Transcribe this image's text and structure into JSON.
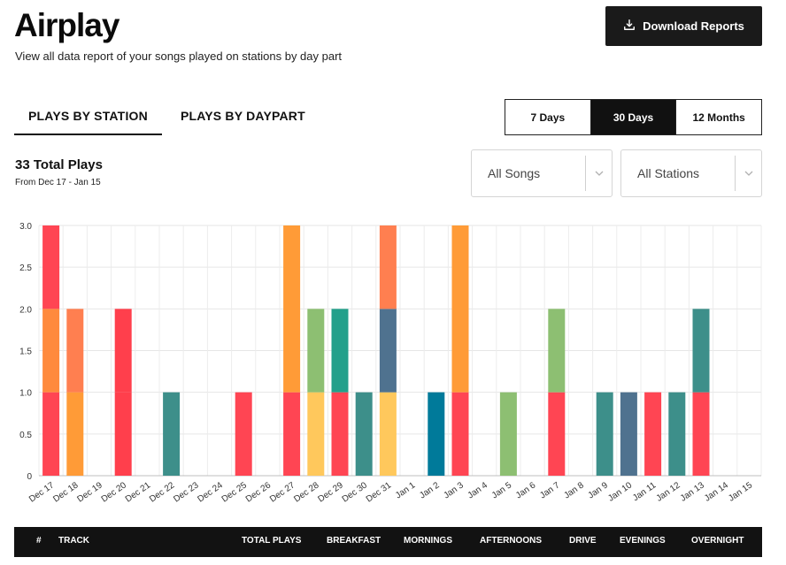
{
  "header": {
    "title": "Airplay",
    "subtitle": "View all data report of your songs played on stations by day part",
    "download_label": "Download Reports"
  },
  "view_tabs": [
    {
      "label": "PLAYS BY STATION",
      "active": true
    },
    {
      "label": "PLAYS BY DAYPART",
      "active": false
    }
  ],
  "range_options": [
    {
      "label": "7 Days",
      "active": false
    },
    {
      "label": "30 Days",
      "active": true
    },
    {
      "label": "12 Months",
      "active": false
    }
  ],
  "summary": {
    "total": "33 Total Plays",
    "range": "From Dec 17 - Jan 15"
  },
  "filters": {
    "songs": "All Songs",
    "stations": "All Stations"
  },
  "chart_data": {
    "type": "bar",
    "stacked": true,
    "ylim": [
      0,
      3
    ],
    "yticks": [
      "0",
      "0.5",
      "1.0",
      "1.5",
      "2.0",
      "2.5",
      "3.0"
    ],
    "grid": true,
    "categories": [
      "Dec 17",
      "Dec 18",
      "Dec 19",
      "Dec 20",
      "Dec 21",
      "Dec 22",
      "Dec 23",
      "Dec 24",
      "Dec 25",
      "Dec 26",
      "Dec 27",
      "Dec 28",
      "Dec 29",
      "Dec 30",
      "Dec 31",
      "Jan 1",
      "Jan 2",
      "Jan 3",
      "Jan 4",
      "Jan 5",
      "Jan 6",
      "Jan 7",
      "Jan 8",
      "Jan 9",
      "Jan 10",
      "Jan 11",
      "Jan 12",
      "Jan 13",
      "Jan 14",
      "Jan 15"
    ],
    "stacks": [
      [
        {
          "value": 1,
          "color": "#ff4553"
        },
        {
          "value": 1,
          "color": "#ff8a3d"
        },
        {
          "value": 1,
          "color": "#ff4553"
        }
      ],
      [
        {
          "value": 1,
          "color": "#ff9b37"
        },
        {
          "value": 1,
          "color": "#ff7f50"
        }
      ],
      [],
      [
        {
          "value": 1,
          "color": "#ff3f4c"
        },
        {
          "value": 1,
          "color": "#ff3f4c"
        }
      ],
      [],
      [
        {
          "value": 1,
          "color": "#3d8f8a"
        }
      ],
      [],
      [],
      [
        {
          "value": 1,
          "color": "#ff4553"
        }
      ],
      [],
      [
        {
          "value": 1,
          "color": "#ff4553"
        },
        {
          "value": 2,
          "color": "#ff9b37"
        }
      ],
      [
        {
          "value": 1,
          "color": "#ffc85c"
        },
        {
          "value": 1,
          "color": "#8dbf72"
        }
      ],
      [
        {
          "value": 1,
          "color": "#ff4553"
        },
        {
          "value": 1,
          "color": "#23a08b"
        }
      ],
      [
        {
          "value": 1,
          "color": "#3d8f8a"
        }
      ],
      [
        {
          "value": 1,
          "color": "#ffc85c"
        },
        {
          "value": 1,
          "color": "#4f728f"
        },
        {
          "value": 1,
          "color": "#ff7f50"
        }
      ],
      [],
      [
        {
          "value": 1,
          "color": "#007a9a"
        }
      ],
      [
        {
          "value": 1,
          "color": "#ff4553"
        },
        {
          "value": 2,
          "color": "#ff9b37"
        }
      ],
      [],
      [
        {
          "value": 1,
          "color": "#8dbf72"
        }
      ],
      [],
      [
        {
          "value": 1,
          "color": "#ff4553"
        },
        {
          "value": 1,
          "color": "#8dbf72"
        }
      ],
      [],
      [
        {
          "value": 1,
          "color": "#3d8f8a"
        }
      ],
      [
        {
          "value": 1,
          "color": "#4f728f"
        }
      ],
      [
        {
          "value": 1,
          "color": "#ff4553"
        }
      ],
      [
        {
          "value": 1,
          "color": "#3d8f8a"
        }
      ],
      [
        {
          "value": 1,
          "color": "#ff4553"
        },
        {
          "value": 1,
          "color": "#3d8f8a"
        }
      ],
      [],
      []
    ]
  },
  "table": {
    "columns": [
      "#",
      "TRACK",
      "TOTAL PLAYS",
      "BREAKFAST",
      "MORNINGS",
      "AFTERNOONS",
      "DRIVE",
      "EVENINGS",
      "OVERNIGHT"
    ]
  }
}
